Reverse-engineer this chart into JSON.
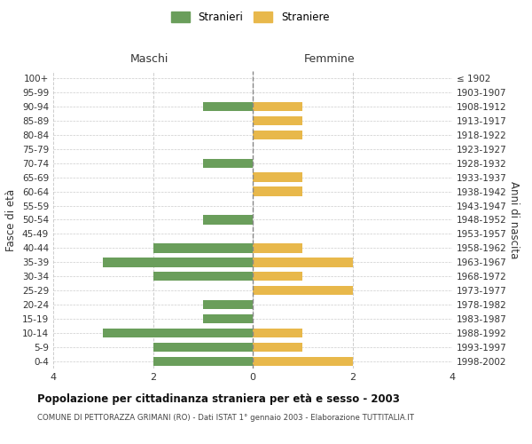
{
  "age_groups": [
    "100+",
    "95-99",
    "90-94",
    "85-89",
    "80-84",
    "75-79",
    "70-74",
    "65-69",
    "60-64",
    "55-59",
    "50-54",
    "45-49",
    "40-44",
    "35-39",
    "30-34",
    "25-29",
    "20-24",
    "15-19",
    "10-14",
    "5-9",
    "0-4"
  ],
  "birth_years": [
    "≤ 1902",
    "1903-1907",
    "1908-1912",
    "1913-1917",
    "1918-1922",
    "1923-1927",
    "1928-1932",
    "1933-1937",
    "1938-1942",
    "1943-1947",
    "1948-1952",
    "1953-1957",
    "1958-1962",
    "1963-1967",
    "1968-1972",
    "1973-1977",
    "1978-1982",
    "1983-1987",
    "1988-1992",
    "1993-1997",
    "1998-2002"
  ],
  "maschi": [
    0,
    0,
    1,
    0,
    0,
    0,
    1,
    0,
    0,
    0,
    1,
    0,
    2,
    3,
    2,
    0,
    1,
    1,
    3,
    2,
    2
  ],
  "femmine": [
    0,
    0,
    1,
    1,
    1,
    0,
    0,
    1,
    1,
    0,
    0,
    0,
    1,
    2,
    1,
    2,
    0,
    0,
    1,
    1,
    2
  ],
  "maschi_color": "#6a9e5b",
  "femmine_color": "#e8b84b",
  "title": "Popolazione per cittadinanza straniera per età e sesso - 2003",
  "subtitle": "COMUNE DI PETTORAZZA GRIMANI (RO) - Dati ISTAT 1° gennaio 2003 - Elaborazione TUTTITALIA.IT",
  "xlabel_left": "Maschi",
  "xlabel_right": "Femmine",
  "ylabel_left": "Fasce di età",
  "ylabel_right": "Anni di nascita",
  "legend_stranieri": "Stranieri",
  "legend_straniere": "Straniere",
  "xlim": 4,
  "background_color": "#ffffff",
  "grid_color": "#cccccc"
}
